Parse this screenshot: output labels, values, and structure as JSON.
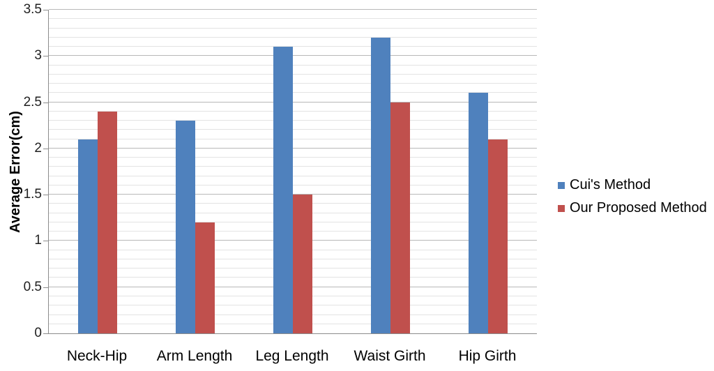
{
  "chart_data": {
    "type": "bar",
    "title": "",
    "xlabel": "",
    "ylabel": "Average Error(cm)",
    "categories": [
      "Neck-Hip",
      "Arm Length",
      "Leg Length",
      "Waist Girth",
      "Hip Girth"
    ],
    "series": [
      {
        "name": "Cui's Method",
        "color": "#4F81BD",
        "values": [
          2.1,
          2.3,
          3.1,
          3.2,
          2.6
        ]
      },
      {
        "name": "Our Proposed Method",
        "color": "#C0504D",
        "values": [
          2.4,
          1.2,
          1.5,
          2.5,
          2.1
        ]
      }
    ],
    "ylim": [
      0,
      3.5
    ],
    "y_major_ticks": [
      "0",
      "0.5",
      "1",
      "1.5",
      "2",
      "2.5",
      "3",
      "3.5"
    ],
    "y_major_step": 0.5,
    "y_minor_step": 0.1,
    "grid": "horizontal, minor every 0.1 and major every 0.5, no vertical gridlines",
    "legend_position": "right-middle",
    "colors": {
      "series1": "#4F81BD",
      "series2": "#C0504D",
      "axis_line": "#8C8C8C",
      "gridline_major": "#B8B8B8",
      "gridline_minor": "#E3E3E3",
      "text": "#000000",
      "background": "#FFFFFF"
    }
  }
}
